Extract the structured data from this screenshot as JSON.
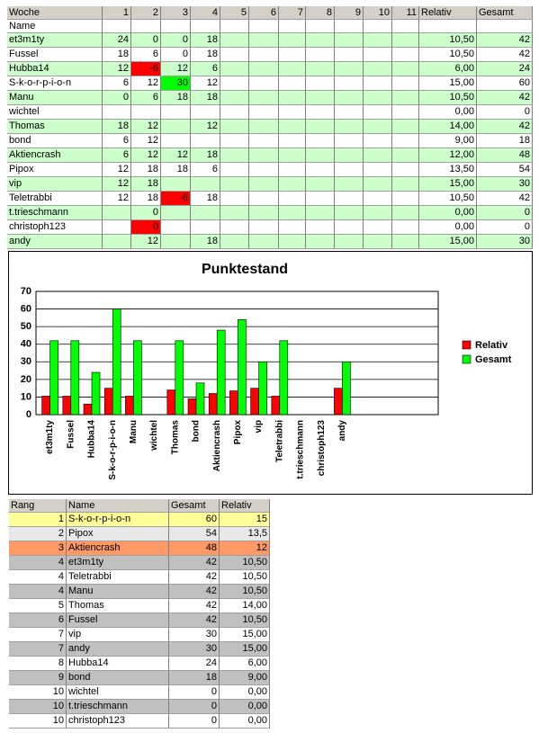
{
  "table": {
    "header": [
      "Woche",
      "1",
      "2",
      "3",
      "4",
      "5",
      "6",
      "7",
      "8",
      "9",
      "10",
      "11",
      "Relativ",
      "Gesamt"
    ],
    "subheader": [
      "Name"
    ],
    "rows": [
      [
        "et3m1ty",
        "24",
        "0",
        "0",
        "18",
        null,
        null,
        null,
        null,
        null,
        null,
        null,
        "10,50",
        "42"
      ],
      [
        "Fussel",
        "18",
        "6",
        "0",
        "18",
        null,
        null,
        null,
        null,
        null,
        null,
        null,
        "10,50",
        "42"
      ],
      [
        "Hubba14",
        "12",
        "-6",
        "12",
        "6",
        null,
        null,
        null,
        null,
        null,
        null,
        null,
        "6,00",
        "24"
      ],
      [
        "S-k-o-r-p-i-o-n",
        "6",
        "12",
        "30",
        "12",
        null,
        null,
        null,
        null,
        null,
        null,
        null,
        "15,00",
        "60"
      ],
      [
        "Manu",
        "0",
        "6",
        "18",
        "18",
        null,
        null,
        null,
        null,
        null,
        null,
        null,
        "10,50",
        "42"
      ],
      [
        "wichtel",
        null,
        null,
        null,
        null,
        null,
        null,
        null,
        null,
        null,
        null,
        null,
        "0,00",
        "0"
      ],
      [
        "Thomas",
        "18",
        "12",
        null,
        "12",
        null,
        null,
        null,
        null,
        null,
        null,
        null,
        "14,00",
        "42"
      ],
      [
        "bond",
        "6",
        "12",
        null,
        null,
        null,
        null,
        null,
        null,
        null,
        null,
        null,
        "9,00",
        "18"
      ],
      [
        "Aktiencrash",
        "6",
        "12",
        "12",
        "18",
        null,
        null,
        null,
        null,
        null,
        null,
        null,
        "12,00",
        "48"
      ],
      [
        "Pipox",
        "12",
        "18",
        "18",
        "6",
        null,
        null,
        null,
        null,
        null,
        null,
        null,
        "13,50",
        "54"
      ],
      [
        "vip",
        "12",
        "18",
        null,
        null,
        null,
        null,
        null,
        null,
        null,
        null,
        null,
        "15,00",
        "30"
      ],
      [
        "Teletrabbi",
        "12",
        "18",
        "-6",
        "18",
        null,
        null,
        null,
        null,
        null,
        null,
        null,
        "10,50",
        "42"
      ],
      [
        "t.trieschmann",
        null,
        "0",
        null,
        null,
        null,
        null,
        null,
        null,
        null,
        null,
        null,
        "0,00",
        "0"
      ],
      [
        "christoph123",
        null,
        "0",
        null,
        null,
        null,
        null,
        null,
        null,
        null,
        null,
        null,
        "0,00",
        "0"
      ],
      [
        "andy",
        null,
        "12",
        null,
        "18",
        null,
        null,
        null,
        null,
        null,
        null,
        null,
        "15,00",
        "30"
      ]
    ]
  },
  "chart_data": {
    "type": "bar",
    "title": "Punktestand",
    "categories": [
      "et3m1ty",
      "Fussel",
      "Hubba14",
      "S-k-o-r-p-i-o-n",
      "Manu",
      "wichtel",
      "Thomas",
      "bond",
      "Aktiencrash",
      "Pipox",
      "vip",
      "Teletrabbi",
      "t.trieschmann",
      "christoph123",
      "andy"
    ],
    "series": [
      {
        "name": "Relativ",
        "color": "#ff0000",
        "values": [
          10.5,
          10.5,
          6,
          15,
          10.5,
          0,
          14,
          9,
          12,
          13.5,
          15,
          10.5,
          0,
          0,
          15
        ]
      },
      {
        "name": "Gesamt",
        "color": "#00ff00",
        "values": [
          42,
          42,
          24,
          60,
          42,
          0,
          42,
          18,
          48,
          54,
          30,
          42,
          0,
          0,
          30
        ]
      }
    ],
    "ylim": [
      0,
      70
    ],
    "yticks": [
      0,
      10,
      20,
      30,
      40,
      50,
      60,
      70
    ],
    "grid": true,
    "legend": "right"
  },
  "ranking": {
    "header": [
      "Rang",
      "Name",
      "Gesamt",
      "Relativ"
    ],
    "rows": [
      [
        "1",
        "S-k-o-r-p-i-o-n",
        "60",
        "15"
      ],
      [
        "2",
        "Pipox",
        "54",
        "13,5"
      ],
      [
        "3",
        "Aktiencrash",
        "48",
        "12"
      ],
      [
        "4",
        "et3m1ty",
        "42",
        "10,50"
      ],
      [
        "4",
        "Teletrabbi",
        "42",
        "10,50"
      ],
      [
        "4",
        "Manu",
        "42",
        "10,50"
      ],
      [
        "5",
        "Thomas",
        "42",
        "14,00"
      ],
      [
        "6",
        "Fussel",
        "42",
        "10,50"
      ],
      [
        "7",
        "vip",
        "30",
        "15,00"
      ],
      [
        "7",
        "andy",
        "30",
        "15,00"
      ],
      [
        "8",
        "Hubba14",
        "24",
        "6,00"
      ],
      [
        "9",
        "bond",
        "18",
        "9,00"
      ],
      [
        "10",
        "wichtel",
        "0",
        "0,00"
      ],
      [
        "10",
        "t.trieschmann",
        "0",
        "0,00"
      ],
      [
        "10",
        "christoph123",
        "0",
        "0,00"
      ]
    ]
  }
}
